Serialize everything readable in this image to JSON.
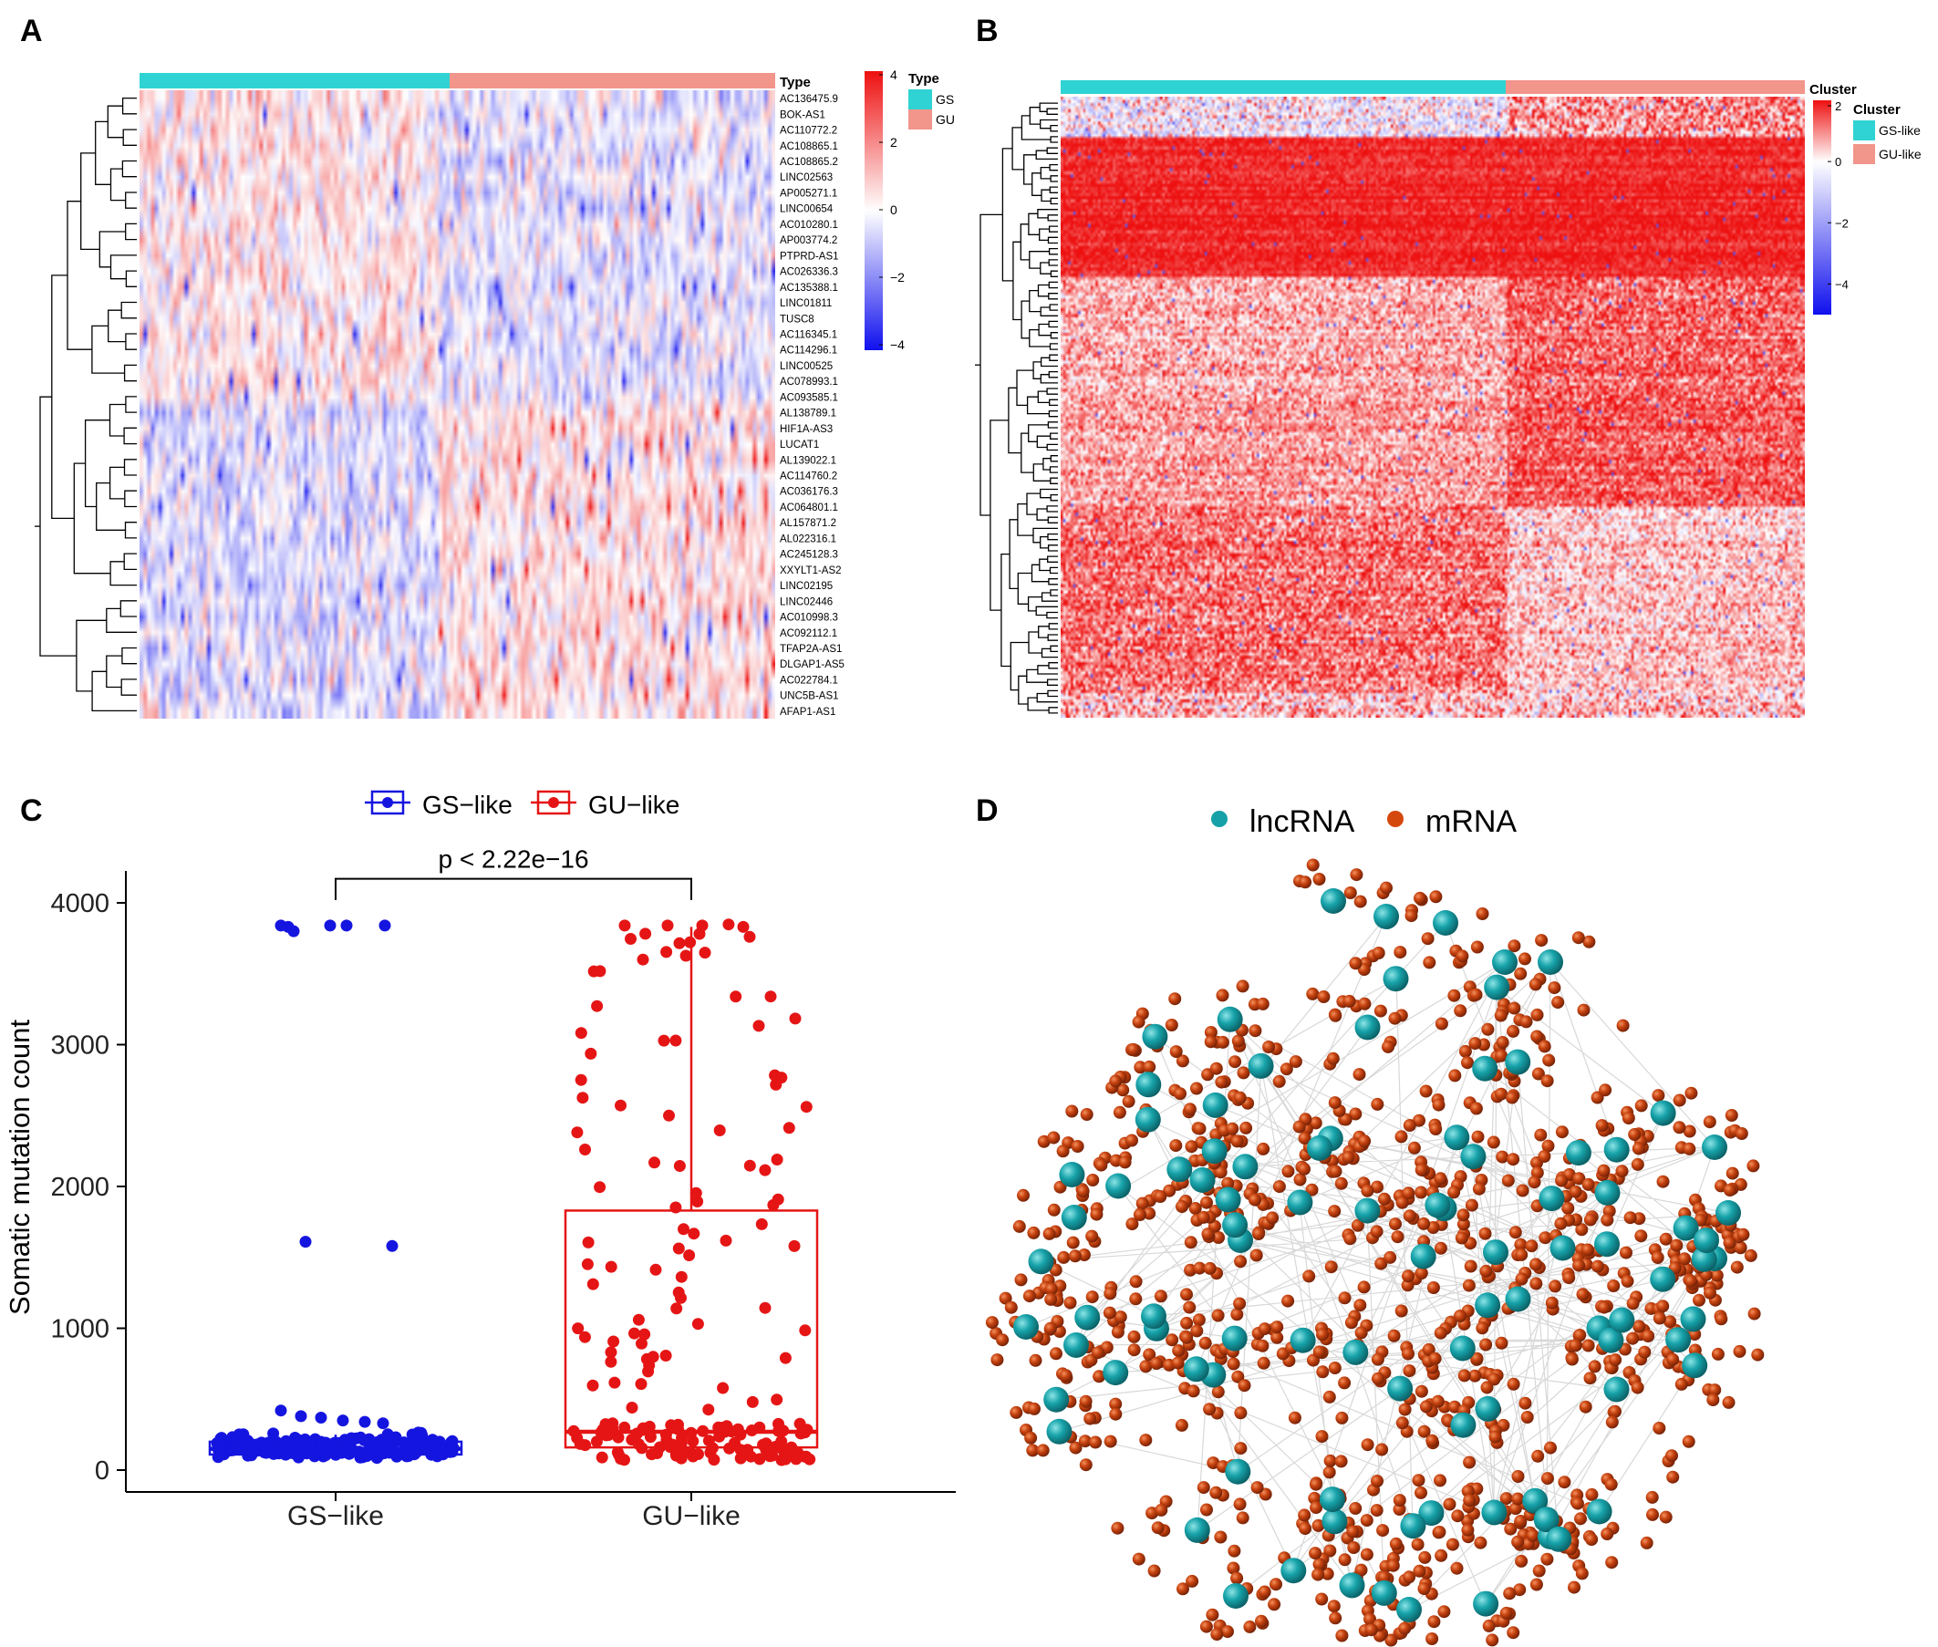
{
  "colors": {
    "gs": "#2FD3D3",
    "gu": "#F2958A",
    "heat_low": "#1010EE",
    "heat_mid": "#FFFFFF",
    "heat_high": "#EE1010",
    "box_gs": "#1515E0",
    "box_gu": "#E51515",
    "lncrna": "#16A1A8",
    "mrna": "#C8420F",
    "edge": "#D8D8D8"
  },
  "chart_data": [
    {
      "panel": "A",
      "type": "heatmap",
      "annotation_title": "Type",
      "legend_title": "Type",
      "groups": [
        "GS",
        "GU"
      ],
      "group_sample_share": [
        0.47,
        0.53
      ],
      "color_scale": {
        "min": -4,
        "max": 4,
        "ticks": [
          "4",
          "2",
          "0",
          "−2",
          "−4"
        ]
      },
      "rows": [
        "AC136475.9",
        "BOK-AS1",
        "AC110772.2",
        "AC108865.1",
        "AC108865.2",
        "LINC02563",
        "AP005271.1",
        "LINC00654",
        "AC010280.1",
        "AP003774.2",
        "PTPRD-AS1",
        "AC026336.3",
        "AC135388.1",
        "LINC01811",
        "TUSC8",
        "AC116345.1",
        "AC114296.1",
        "LINC00525",
        "AC078993.1",
        "AC093585.1",
        "AL138789.1",
        "HIF1A-AS3",
        "LUCAT1",
        "AL139022.1",
        "AC114760.2",
        "AC036176.3",
        "AC064801.1",
        "AL157871.2",
        "AL022316.1",
        "AC245128.3",
        "XXYLT1-AS2",
        "LINC02195",
        "LINC02446",
        "AC010998.3",
        "AC092112.1",
        "TFAP2A-AS1",
        "DLGAP1-AS5",
        "AC022784.1",
        "UNC5B-AS1",
        "AFAP1-AS1"
      ]
    },
    {
      "panel": "B",
      "type": "heatmap",
      "annotation_title": "Cluster",
      "legend_title": "Cluster",
      "groups": [
        "GS-like",
        "GU-like"
      ],
      "group_sample_share": [
        0.6,
        0.4
      ],
      "color_scale": {
        "min": -5,
        "max": 2,
        "ticks": [
          "2",
          "0",
          "−2",
          "−4"
        ]
      }
    },
    {
      "panel": "C",
      "type": "box",
      "ylabel": "Somatic mutation count",
      "categories": [
        "GS-like",
        "GU-like"
      ],
      "ylim": [
        0,
        4000
      ],
      "yticks": [
        0,
        1000,
        2000,
        3000,
        4000
      ],
      "legend_entries": [
        "GS−like",
        "GU−like"
      ],
      "annotation": "p < 2.22e−16",
      "boxes": [
        {
          "name": "GS-like",
          "q1": 110,
          "median": 150,
          "q3": 200,
          "whisker_low": 90,
          "whisker_high": 250
        },
        {
          "name": "GU-like",
          "q1": 160,
          "median": 270,
          "q3": 1830,
          "whisker_low": 60,
          "whisker_high": 3830
        }
      ],
      "outliers": {
        "GS-like": [
          3840,
          3830,
          3800,
          3840,
          3840,
          3840,
          1610,
          1580,
          420,
          380,
          370,
          350,
          340,
          330
        ]
      }
    },
    {
      "panel": "D",
      "type": "network",
      "legend_entries": [
        "lncRNA",
        "mRNA"
      ]
    }
  ],
  "panels": {
    "a": "A",
    "b": "B",
    "c": "C",
    "d": "D"
  },
  "c_xticklabels": [
    "GS−like",
    "GU−like"
  ]
}
